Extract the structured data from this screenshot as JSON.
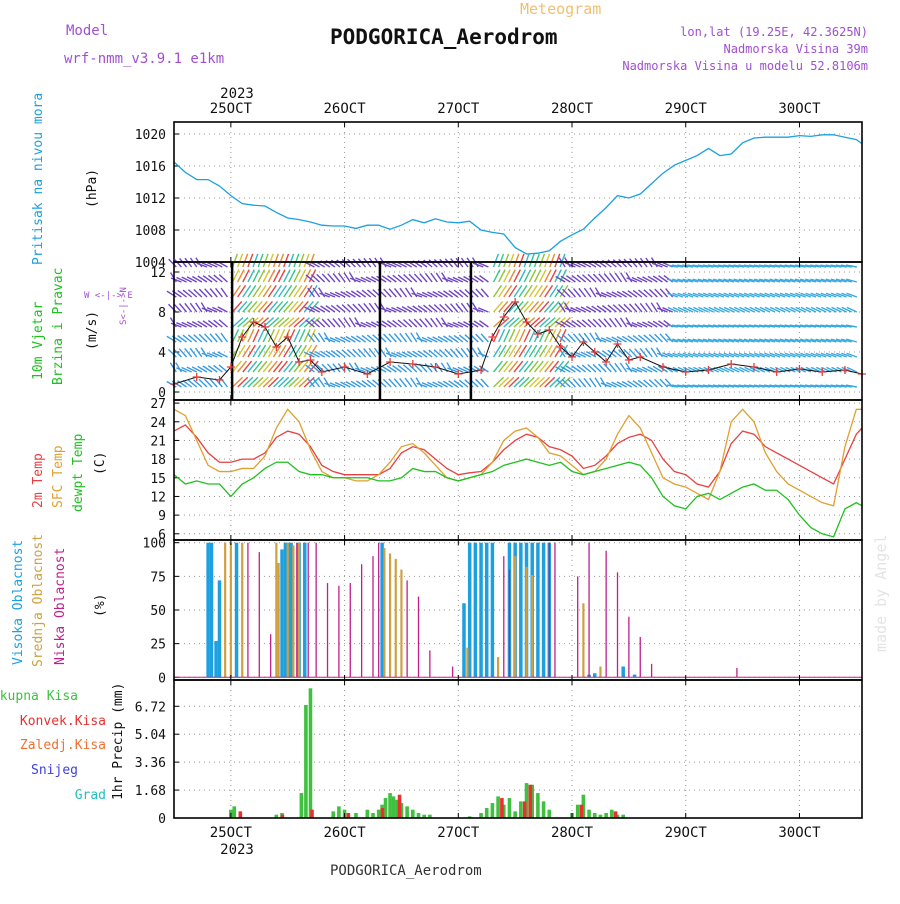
{
  "header": {
    "model_label": "Model",
    "model_name": "wrf-nmm_v3.9.1 e1km",
    "meteogram_label": "Meteogram",
    "station": "PODGORICA_Aerodrom",
    "lonlat": "lon,lat (19.25E, 42.3625N)",
    "altitude": "Nadmorska Visina 39m",
    "model_altitude": "Nadmorska Visina u modelu 52.8106m",
    "footer_station": "PODGORICA_Aerodrom",
    "credit": "made by Angel"
  },
  "colors": {
    "pressure": "#1ca0e0",
    "temp2m": "#e84040",
    "sfc": "#e0a030",
    "dewpt": "#20c020",
    "visoka": "#1ca0e0",
    "srednja": "#d0a040",
    "niska": "#c0208a",
    "ukupna": "#40c040",
    "konvek": "#e83030",
    "zaledj": "#f07030",
    "snijeg": "#4040e0",
    "grad": "#20c0c0"
  },
  "chart_data": [
    {
      "type": "line",
      "panel": "pressure",
      "ylabel": "Pritisak na nivou mora",
      "unit": "(hPa)",
      "yticks": [
        1004,
        1008,
        1012,
        1016,
        1020
      ],
      "ylim": [
        1004,
        1021.5
      ],
      "xlim": [
        24.5,
        30.55
      ],
      "series": [
        {
          "x": [
            24.5,
            24.6,
            24.7,
            24.8,
            24.9,
            25.0,
            25.1,
            25.2,
            25.3,
            25.4,
            25.5,
            25.6,
            25.7,
            25.8,
            25.9,
            26.0,
            26.1,
            26.2,
            26.3,
            26.4,
            26.5,
            26.6,
            26.7,
            26.8,
            26.9,
            27.0,
            27.1,
            27.2,
            27.3,
            27.4,
            27.5,
            27.6,
            27.7,
            27.8,
            27.9,
            28.0,
            28.1,
            28.2,
            28.3,
            28.4,
            28.5,
            28.6,
            28.7,
            28.8,
            28.9,
            29.0,
            29.1,
            29.2,
            29.3,
            29.4,
            29.5,
            29.6,
            29.7,
            29.8,
            29.9,
            30.0,
            30.1,
            30.2,
            30.3,
            30.4,
            30.5,
            30.55
          ],
          "y": [
            1016.5,
            1015.2,
            1014.3,
            1014.3,
            1013.5,
            1012.3,
            1011.3,
            1011.1,
            1011.0,
            1010.2,
            1009.5,
            1009.3,
            1009.0,
            1008.6,
            1008.5,
            1008.5,
            1008.2,
            1008.6,
            1008.6,
            1008.1,
            1008.6,
            1009.3,
            1008.9,
            1009.4,
            1009.0,
            1008.9,
            1009.1,
            1008.0,
            1007.7,
            1007.5,
            1005.8,
            1005.0,
            1005.1,
            1005.4,
            1006.6,
            1007.4,
            1008.1,
            1009.5,
            1010.8,
            1012.3,
            1012.0,
            1012.5,
            1013.8,
            1015.1,
            1016.1,
            1016.7,
            1017.3,
            1018.2,
            1017.3,
            1017.5,
            1018.9,
            1019.5,
            1019.6,
            1019.6,
            1019.6,
            1019.8,
            1019.7,
            1019.9,
            1019.9,
            1019.6,
            1019.3,
            1018.8
          ]
        }
      ]
    },
    {
      "type": "line",
      "panel": "wind",
      "ylabel": "10m Vjetar Brzina i Pravac",
      "unit": "(m/s)",
      "compass": "W <-|-> E",
      "compass_vertical": "S<-|->N",
      "yticks": [
        0,
        4,
        8,
        12
      ],
      "ylim": [
        -0.8,
        13
      ],
      "series": [
        {
          "name": "speed",
          "x": [
            24.5,
            24.7,
            24.9,
            25.0,
            25.1,
            25.2,
            25.3,
            25.4,
            25.5,
            25.6,
            25.7,
            25.8,
            26.0,
            26.2,
            26.4,
            26.6,
            26.8,
            27.0,
            27.2,
            27.3,
            27.4,
            27.5,
            27.6,
            27.7,
            27.8,
            27.9,
            28.0,
            28.1,
            28.2,
            28.3,
            28.4,
            28.5,
            28.6,
            28.8,
            29.0,
            29.2,
            29.4,
            29.6,
            29.8,
            30.0,
            30.2,
            30.4,
            30.55
          ],
          "y": [
            0.8,
            1.5,
            1.2,
            2.5,
            5.5,
            7.0,
            6.5,
            4.5,
            5.5,
            3.0,
            3.2,
            2.0,
            2.5,
            1.8,
            3.0,
            2.8,
            2.5,
            1.8,
            2.2,
            5.5,
            7.5,
            9.0,
            7.0,
            5.8,
            6.2,
            4.5,
            3.5,
            5.0,
            4.0,
            3.0,
            4.8,
            3.2,
            3.5,
            2.5,
            2.0,
            2.2,
            2.8,
            2.5,
            2.0,
            2.3,
            2.0,
            2.2,
            1.8
          ]
        }
      ]
    },
    {
      "type": "line",
      "panel": "temperature",
      "unit": "(C)",
      "yticks": [
        6,
        9,
        12,
        15,
        18,
        21,
        24,
        27
      ],
      "ylim": [
        5,
        27.5
      ],
      "series": [
        {
          "name": "2m Temp",
          "x": [
            24.5,
            24.6,
            24.7,
            24.8,
            24.9,
            25.0,
            25.1,
            25.2,
            25.3,
            25.4,
            25.5,
            25.6,
            25.7,
            25.8,
            25.9,
            26.0,
            26.1,
            26.2,
            26.3,
            26.4,
            26.5,
            26.6,
            26.7,
            26.8,
            26.9,
            27.0,
            27.1,
            27.2,
            27.3,
            27.4,
            27.5,
            27.6,
            27.7,
            27.8,
            27.9,
            28.0,
            28.1,
            28.2,
            28.3,
            28.4,
            28.5,
            28.6,
            28.7,
            28.8,
            28.9,
            29.0,
            29.1,
            29.2,
            29.3,
            29.4,
            29.5,
            29.6,
            29.7,
            29.8,
            29.9,
            30.0,
            30.1,
            30.2,
            30.3,
            30.4,
            30.5,
            30.55
          ],
          "y": [
            22.5,
            23.5,
            21.5,
            19.0,
            17.5,
            17.5,
            18.0,
            18.0,
            19.0,
            21.5,
            22.5,
            22.0,
            20.0,
            17.0,
            16.0,
            15.5,
            15.5,
            15.5,
            15.5,
            16.5,
            19.0,
            20.0,
            19.5,
            18.0,
            16.5,
            15.5,
            15.8,
            16.0,
            17.5,
            19.5,
            21.0,
            22.0,
            21.5,
            20.0,
            19.5,
            18.5,
            16.5,
            17.0,
            18.5,
            20.5,
            21.5,
            22.0,
            21.0,
            18.0,
            16.0,
            15.5,
            14.0,
            13.5,
            16.0,
            20.5,
            22.5,
            22.0,
            20.0,
            19.0,
            18.0,
            17.0,
            16.0,
            15.0,
            14.0,
            18.0,
            22.0,
            23.0
          ]
        },
        {
          "name": "SFC Temp",
          "x": [
            24.5,
            24.6,
            24.7,
            24.8,
            24.9,
            25.0,
            25.1,
            25.2,
            25.3,
            25.4,
            25.5,
            25.6,
            25.7,
            25.8,
            25.9,
            26.0,
            26.1,
            26.2,
            26.3,
            26.4,
            26.5,
            26.6,
            26.7,
            26.8,
            26.9,
            27.0,
            27.1,
            27.2,
            27.3,
            27.4,
            27.5,
            27.6,
            27.7,
            27.8,
            27.9,
            28.0,
            28.1,
            28.2,
            28.3,
            28.4,
            28.5,
            28.6,
            28.7,
            28.8,
            28.9,
            29.0,
            29.1,
            29.2,
            29.3,
            29.4,
            29.5,
            29.6,
            29.7,
            29.8,
            29.9,
            30.0,
            30.1,
            30.2,
            30.3,
            30.4,
            30.5,
            30.55
          ],
          "y": [
            26.0,
            25.0,
            21.0,
            17.0,
            16.0,
            16.0,
            16.5,
            16.5,
            18.5,
            23.0,
            26.0,
            24.0,
            19.5,
            16.0,
            15.0,
            15.0,
            14.5,
            14.5,
            15.5,
            17.5,
            20.0,
            20.5,
            19.0,
            17.0,
            15.0,
            14.5,
            15.0,
            15.5,
            17.5,
            21.0,
            22.5,
            23.0,
            21.5,
            19.0,
            18.5,
            17.0,
            15.5,
            16.0,
            18.0,
            22.0,
            25.0,
            23.0,
            19.0,
            15.0,
            14.0,
            13.5,
            12.5,
            11.5,
            16.0,
            24.0,
            26.0,
            24.0,
            19.0,
            16.0,
            14.0,
            13.0,
            12.0,
            11.0,
            10.5,
            20.0,
            26.0,
            26.0
          ]
        },
        {
          "name": "dewpt Temp",
          "x": [
            24.5,
            24.6,
            24.7,
            24.8,
            24.9,
            25.0,
            25.1,
            25.2,
            25.3,
            25.4,
            25.5,
            25.6,
            25.7,
            25.8,
            25.9,
            26.0,
            26.1,
            26.2,
            26.3,
            26.4,
            26.5,
            26.6,
            26.7,
            26.8,
            26.9,
            27.0,
            27.1,
            27.2,
            27.3,
            27.4,
            27.5,
            27.6,
            27.7,
            27.8,
            27.9,
            28.0,
            28.1,
            28.2,
            28.3,
            28.4,
            28.5,
            28.6,
            28.7,
            28.8,
            28.9,
            29.0,
            29.1,
            29.2,
            29.3,
            29.4,
            29.5,
            29.6,
            29.7,
            29.8,
            29.9,
            30.0,
            30.1,
            30.2,
            30.3,
            30.4,
            30.5,
            30.55
          ],
          "y": [
            15.5,
            14.0,
            14.5,
            14.0,
            14.0,
            12.0,
            14.0,
            15.0,
            16.5,
            17.5,
            17.5,
            16.0,
            15.5,
            15.5,
            15.0,
            15.0,
            15.0,
            15.0,
            14.5,
            14.5,
            15.0,
            16.5,
            16.0,
            16.0,
            15.0,
            14.5,
            15.0,
            15.5,
            16.0,
            17.0,
            17.5,
            18.0,
            17.5,
            17.0,
            17.5,
            16.0,
            15.5,
            16.0,
            16.5,
            17.0,
            17.5,
            17.0,
            15.0,
            12.0,
            10.5,
            10.0,
            12.0,
            12.5,
            11.5,
            12.5,
            13.5,
            14.0,
            13.0,
            13.0,
            11.5,
            9.0,
            7.0,
            6.0,
            5.5,
            10.0,
            11.0,
            10.5
          ]
        }
      ]
    },
    {
      "type": "bar",
      "panel": "clouds",
      "unit": "(%)",
      "yticks": [
        0,
        25,
        50,
        75,
        100
      ],
      "ylim": [
        -2,
        102
      ],
      "series": [
        {
          "name": "Visoka Oblacnost",
          "x": [
            24.8,
            24.83,
            24.87,
            24.9,
            25.05,
            25.45,
            25.48,
            25.5,
            25.53,
            25.6,
            25.65,
            26.33,
            27.05,
            27.1,
            27.15,
            27.2,
            27.25,
            27.3,
            27.45,
            27.5,
            27.55,
            27.6,
            27.65,
            27.7,
            27.75,
            27.8,
            28.15,
            28.2,
            28.45,
            28.55
          ],
          "values": [
            100,
            100,
            27,
            72,
            100,
            95,
            100,
            100,
            100,
            100,
            100,
            100,
            55,
            100,
            100,
            100,
            100,
            100,
            100,
            100,
            100,
            100,
            100,
            100,
            100,
            100,
            2,
            3,
            8,
            2
          ]
        },
        {
          "name": "Srednja Oblacnost",
          "x": [
            24.95,
            25.0,
            25.1,
            25.4,
            25.42,
            25.5,
            25.55,
            25.6,
            26.35,
            26.4,
            26.45,
            26.5,
            27.08,
            27.35,
            27.5,
            27.6,
            27.65,
            28.1,
            28.25
          ],
          "values": [
            100,
            100,
            100,
            100,
            85,
            100,
            98,
            100,
            96,
            92,
            88,
            80,
            22,
            15,
            90,
            82,
            76,
            55,
            8
          ]
        },
        {
          "name": "Niska Oblacnost",
          "x": [
            25.15,
            25.25,
            25.35,
            25.58,
            25.68,
            25.75,
            25.85,
            25.95,
            26.05,
            26.15,
            26.25,
            26.3,
            26.55,
            26.65,
            26.75,
            26.95,
            27.4,
            27.45,
            27.8,
            27.85,
            28.05,
            28.15,
            28.3,
            28.4,
            28.5,
            28.6,
            28.7,
            29.45
          ],
          "values": [
            100,
            93,
            32,
            100,
            100,
            100,
            70,
            68,
            70,
            84,
            90,
            100,
            72,
            60,
            20,
            8,
            90,
            80,
            100,
            100,
            75,
            100,
            94,
            78,
            45,
            30,
            10,
            7
          ]
        }
      ]
    },
    {
      "type": "bar",
      "panel": "precip",
      "ylabel": "1hr Precip (mm)",
      "yticks": [
        0,
        1.68,
        3.36,
        5.04,
        6.72
      ],
      "ylim": [
        0,
        8.3
      ],
      "series": [
        {
          "name": "Ukupna Kisa",
          "x": [
            25.0,
            25.03,
            25.4,
            25.45,
            25.62,
            25.66,
            25.7,
            25.9,
            25.95,
            26.0,
            26.1,
            26.2,
            26.25,
            26.3,
            26.33,
            26.36,
            26.4,
            26.43,
            26.46,
            26.5,
            26.55,
            26.6,
            26.65,
            26.7,
            26.75,
            27.1,
            27.2,
            27.25,
            27.3,
            27.35,
            27.4,
            27.45,
            27.5,
            27.55,
            27.6,
            27.65,
            27.7,
            27.75,
            27.8,
            28.0,
            28.05,
            28.1,
            28.15,
            28.2,
            28.25,
            28.3,
            28.35,
            28.4,
            28.45
          ],
          "values": [
            0.5,
            0.7,
            0.2,
            0.3,
            1.5,
            6.8,
            7.8,
            0.4,
            0.7,
            0.5,
            0.3,
            0.5,
            0.3,
            0.5,
            0.8,
            1.2,
            1.5,
            1.3,
            1.1,
            0.9,
            0.7,
            0.5,
            0.3,
            0.2,
            0.2,
            0.1,
            0.3,
            0.6,
            0.9,
            1.3,
            0.8,
            1.2,
            0.4,
            1.0,
            2.1,
            2.0,
            1.5,
            1.0,
            0.5,
            0.3,
            0.8,
            1.4,
            0.5,
            0.3,
            0.2,
            0.3,
            0.5,
            0.2,
            0.2
          ]
        },
        {
          "name": "Konvek.Kisa",
          "x": [
            25.05,
            25.42,
            25.68,
            26.0,
            26.3,
            26.45,
            27.35,
            27.55,
            27.6,
            28.05,
            28.35
          ],
          "values": [
            0.4,
            0.2,
            0.5,
            0.3,
            0.6,
            1.4,
            1.2,
            1.0,
            2.0,
            0.8,
            0.4
          ]
        }
      ]
    }
  ],
  "x_axis": {
    "top_year": "2023",
    "top_labels": [
      "25OCT",
      "26OCT",
      "27OCT",
      "28OCT",
      "29OCT",
      "30OCT"
    ],
    "bottom_labels": [
      "25OCT",
      "26OCT",
      "27OCT",
      "28OCT",
      "29OCT",
      "30OCT"
    ],
    "bottom_year": "2023",
    "positions": [
      25,
      26,
      27,
      28,
      29,
      30
    ]
  },
  "labels": {
    "pressure": "Pritisak na nivou mora",
    "pressure_unit": "(hPa)",
    "wind_line1": "10m Vjetar",
    "wind_line2": "Brzina i Pravac",
    "wind_unit": "(m/s)",
    "temp2m": "2m Temp",
    "sfc": "SFC Temp",
    "dewpt": "dewpt Temp",
    "temp_unit": "(C)",
    "visoka": "Visoka Oblacnost",
    "srednja": "Srednja Oblacnost",
    "niska": "Niska Oblacnost",
    "cloud_unit": "(%)",
    "ukupna": "Ukupna Kisa",
    "konvek": "Konvek.Kisa",
    "zaledj": "Zaledj.Kisa",
    "snijeg": "Snijeg",
    "grad": "Grad",
    "precip_unit": "1hr Precip (mm)",
    "compass_we": "W <-|-> E",
    "compass_sn": "S<-|->N"
  }
}
